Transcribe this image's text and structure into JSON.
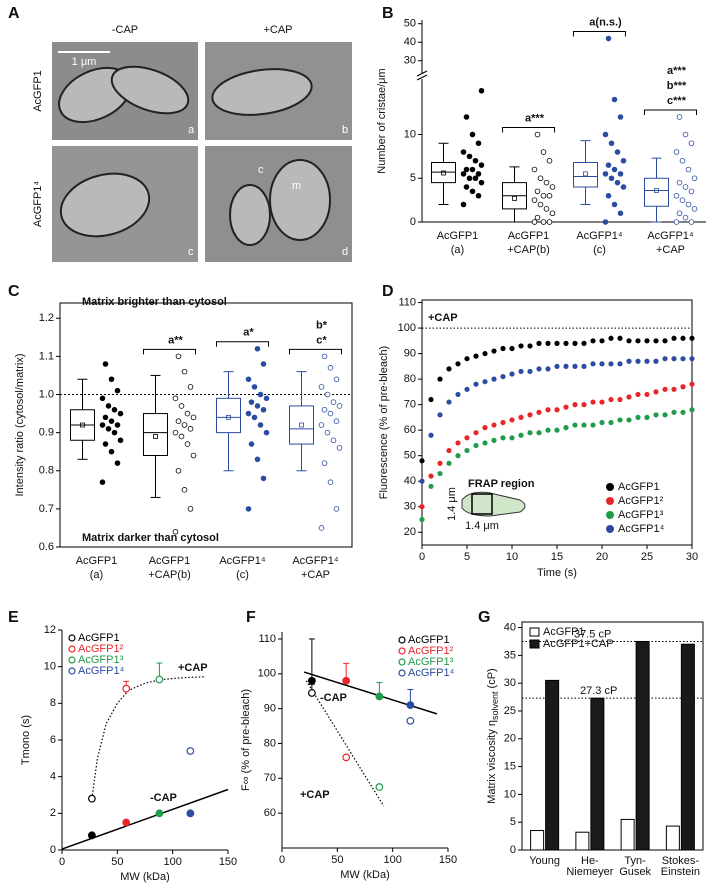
{
  "panel_a": {
    "panel": "A",
    "columns": [
      "-CAP",
      "+CAP"
    ],
    "rows": [
      "AcGFP1",
      "AcGFP1⁴"
    ],
    "scale_bar": "1 μm",
    "image_letters": [
      "a",
      "b",
      "c",
      "d"
    ],
    "compartment_labels": [
      "c",
      "m"
    ]
  },
  "chart_data": [
    {
      "type": "box-swarm",
      "panel": "B",
      "ylabel": "Number of cristae/μm",
      "categories": [
        "AcGFP1",
        "AcGFP1",
        "AcGFP1⁴",
        "AcGFP1⁴"
      ],
      "category_sublabels": [
        "(a)",
        "+CAP(b)",
        "(c)",
        "+CAP"
      ],
      "ylim": [
        0,
        16
      ],
      "yticks": [
        0,
        5,
        10
      ],
      "ylim_upper": [
        25,
        52
      ],
      "yticks_upper": [
        30,
        40,
        50
      ],
      "boxes": [
        {
          "whisker_low": 2,
          "q1": 4.5,
          "median": 5.7,
          "q3": 6.8,
          "whisker_high": 9,
          "mean": 5.6
        },
        {
          "whisker_low": 0,
          "q1": 1.5,
          "median": 3,
          "q3": 4.5,
          "whisker_high": 6.3,
          "mean": 2.7
        },
        {
          "whisker_low": 2,
          "q1": 4,
          "median": 5.2,
          "q3": 6.8,
          "whisker_high": 9.3,
          "mean": 5.5
        },
        {
          "whisker_low": 0,
          "q1": 1.8,
          "median": 3.6,
          "q3": 5,
          "whisker_high": 7.3,
          "mean": 3.6
        }
      ],
      "points": [
        [
          2,
          3,
          3.5,
          4,
          4.5,
          5,
          5,
          5.5,
          5.5,
          6,
          6,
          6.5,
          7,
          7.5,
          8,
          9,
          10,
          12,
          15
        ],
        [
          0,
          0,
          0,
          0.5,
          1,
          1.5,
          2,
          2.5,
          3,
          3,
          3.5,
          4,
          4.5,
          5,
          6,
          7,
          8,
          10
        ],
        [
          0,
          1,
          2,
          3,
          4,
          4.5,
          5,
          5.5,
          5.5,
          6,
          6.5,
          7,
          8,
          9,
          10,
          12,
          14,
          42
        ],
        [
          0,
          0,
          0.5,
          1,
          1.5,
          2,
          2.5,
          3,
          3.5,
          4,
          4.5,
          5,
          6,
          7,
          8,
          9,
          10,
          12
        ]
      ],
      "colors": [
        "#000000",
        "#000000",
        "#2b4ca0",
        "#2b4ca0"
      ],
      "open": [
        false,
        true,
        false,
        true
      ],
      "annotations": [
        null,
        [
          "a***"
        ],
        [
          "a(n.s.)"
        ],
        [
          "a***",
          "b***",
          "c***"
        ]
      ]
    },
    {
      "type": "box-swarm",
      "panel": "C",
      "ylabel": "Intensity ratio (cytosol/matrix)",
      "categories": [
        "AcGFP1",
        "AcGFP1",
        "AcGFP1⁴",
        "AcGFP1⁴"
      ],
      "category_sublabels": [
        "(a)",
        "+CAP(b)",
        "(c)",
        "+CAP"
      ],
      "ylim": [
        0.6,
        1.24
      ],
      "yticks": [
        0.6,
        0.7,
        0.8,
        0.9,
        {
          "value": 1,
          "label": "1.0"
        },
        1.1,
        1.2
      ],
      "reference_line": 1,
      "top_note": "Matrix brighter than cytosol",
      "bottom_note": "Matrix darker than cytosol",
      "boxes": [
        {
          "whisker_low": 0.83,
          "q1": 0.88,
          "median": 0.92,
          "q3": 0.96,
          "whisker_high": 1.04,
          "mean": 0.92
        },
        {
          "whisker_low": 0.73,
          "q1": 0.84,
          "median": 0.9,
          "q3": 0.95,
          "whisker_high": 1.05,
          "mean": 0.89
        },
        {
          "whisker_low": 0.8,
          "q1": 0.9,
          "median": 0.94,
          "q3": 0.99,
          "whisker_high": 1.06,
          "mean": 0.94
        },
        {
          "whisker_low": 0.8,
          "q1": 0.87,
          "median": 0.91,
          "q3": 0.97,
          "whisker_high": 1.06,
          "mean": 0.92
        }
      ],
      "points": [
        [
          0.77,
          0.82,
          0.85,
          0.87,
          0.88,
          0.9,
          0.91,
          0.92,
          0.92,
          0.93,
          0.94,
          0.95,
          0.96,
          0.97,
          0.99,
          1.01,
          1.04,
          1.08
        ],
        [
          0.64,
          0.7,
          0.75,
          0.8,
          0.84,
          0.87,
          0.89,
          0.9,
          0.91,
          0.92,
          0.93,
          0.94,
          0.95,
          0.97,
          0.99,
          1.02,
          1.06,
          1.1
        ],
        [
          0.7,
          0.78,
          0.83,
          0.87,
          0.9,
          0.92,
          0.94,
          0.95,
          0.96,
          0.97,
          0.98,
          0.99,
          1.0,
          1.02,
          1.04,
          1.08,
          1.12
        ],
        [
          0.65,
          0.7,
          0.77,
          0.82,
          0.86,
          0.88,
          0.9,
          0.92,
          0.93,
          0.95,
          0.96,
          0.97,
          0.98,
          1.0,
          1.02,
          1.04,
          1.07,
          1.1
        ]
      ],
      "colors": [
        "#000000",
        "#000000",
        "#2b4ca0",
        "#2b4ca0"
      ],
      "open": [
        false,
        true,
        false,
        true
      ],
      "annotations": [
        null,
        [
          "a**"
        ],
        [
          "a*"
        ],
        [
          "b*",
          "c*"
        ]
      ]
    },
    {
      "type": "scatter-line",
      "panel": "D",
      "xlabel": "Time (s)",
      "ylabel": "Fluorescence (% of pre-bleach)",
      "x": [
        0,
        1,
        2,
        3,
        4,
        5,
        6,
        7,
        8,
        9,
        10,
        11,
        12,
        13,
        14,
        15,
        16,
        17,
        18,
        19,
        20,
        21,
        22,
        23,
        24,
        25,
        26,
        27,
        28,
        29,
        30
      ],
      "series": [
        {
          "name": "AcGFP1",
          "color": "#000000",
          "values": [
            48,
            72,
            80,
            84,
            86,
            88,
            89,
            90,
            91,
            92,
            92,
            93,
            93,
            94,
            94,
            94,
            94,
            94,
            94,
            95,
            95,
            96,
            96,
            95,
            95,
            95,
            95,
            95,
            96,
            96,
            96
          ]
        },
        {
          "name": "AcGFP1²",
          "color": "#e8262a",
          "values": [
            30,
            42,
            47,
            52,
            55,
            57,
            59,
            61,
            62,
            63,
            64,
            65,
            66,
            67,
            68,
            68,
            69,
            70,
            70,
            71,
            71,
            72,
            72,
            73,
            74,
            74,
            75,
            76,
            76,
            77,
            78
          ]
        },
        {
          "name": "AcGFP1³",
          "color": "#1f9b4a",
          "values": [
            25,
            38,
            43,
            47,
            50,
            52,
            54,
            55,
            56,
            57,
            57,
            58,
            59,
            59,
            60,
            60,
            61,
            62,
            62,
            62,
            63,
            63,
            64,
            64,
            65,
            65,
            66,
            66,
            67,
            67,
            68
          ]
        },
        {
          "name": "AcGFP1⁴",
          "color": "#2b4ca0",
          "values": [
            40,
            58,
            66,
            71,
            74,
            76,
            78,
            79,
            80,
            81,
            82,
            83,
            83,
            84,
            84,
            85,
            85,
            85,
            85,
            86,
            86,
            86,
            86,
            87,
            87,
            87,
            87,
            88,
            88,
            88,
            88
          ]
        }
      ],
      "xlim": [
        0,
        30
      ],
      "xticks": [
        0,
        5,
        10,
        15,
        20,
        25,
        30
      ],
      "ylim": [
        15,
        111
      ],
      "yticks": [
        20,
        30,
        40,
        50,
        60,
        70,
        80,
        90,
        100,
        110
      ],
      "reference_line": 100,
      "annotation": "+CAP",
      "legend": "lower right",
      "inset_labels": [
        "FRAP region",
        "1.4 μm",
        "1.4 μm"
      ]
    },
    {
      "type": "scatter-fit",
      "panel": "E",
      "xlabel": "MW (kDa)",
      "ylabel": "Tmono (s)",
      "x": [
        27,
        58,
        88,
        116
      ],
      "legend_names": [
        "AcGFP1",
        "AcGFP1²",
        "AcGFP1³",
        "AcGFP1⁴"
      ],
      "point_colors": [
        "#000000",
        "#e8262a",
        "#1f9b4a",
        "#2b4ca0"
      ],
      "legend": "upper left",
      "series": [
        {
          "name": "-CAP",
          "open": false,
          "values": [
            0.8,
            1.5,
            2.0,
            2.0
          ],
          "fit_style": "solid",
          "fit": {
            "x": [
              0,
              150
            ],
            "y": [
              0.05,
              3.3
            ]
          }
        },
        {
          "name": "+CAP",
          "open": true,
          "values": [
            2.8,
            8.8,
            9.3,
            5.4
          ],
          "errors": [
            null,
            0.4,
            0.9,
            null
          ],
          "fit_style": "dotted",
          "fit": {
            "x": [
              27,
              32,
              40,
              50,
              60,
              75,
              90,
              110,
              130
            ],
            "y": [
              2.8,
              5,
              6.9,
              8.0,
              8.7,
              9.1,
              9.3,
              9.4,
              9.45
            ]
          }
        }
      ],
      "xlim": [
        0,
        150
      ],
      "xticks": [
        0,
        50,
        100,
        150
      ],
      "ylim": [
        0,
        12
      ],
      "yticks": [
        0,
        2,
        4,
        6,
        8,
        10,
        12
      ]
    },
    {
      "type": "scatter-fit",
      "panel": "F",
      "xlabel": "MW (kDa)",
      "ylabel": "F∞ (% of pre-bleach)",
      "x": [
        27,
        58,
        88,
        116
      ],
      "legend_names": [
        "AcGFP1",
        "AcGFP1²",
        "AcGFP1³",
        "AcGFP1⁴"
      ],
      "point_colors": [
        "#000000",
        "#e8262a",
        "#1f9b4a",
        "#2b4ca0"
      ],
      "legend": "upper right",
      "series": [
        {
          "name": "-CAP",
          "open": false,
          "values": [
            98,
            98,
            93.5,
            91
          ],
          "errors": [
            12,
            5,
            4,
            4.5
          ],
          "fit_style": "solid",
          "fit": {
            "x": [
              20,
              140
            ],
            "y": [
              100.5,
              88.5
            ]
          }
        },
        {
          "name": "+CAP",
          "open": true,
          "values": [
            94.5,
            76,
            67.5,
            86.5
          ],
          "errors": [
            2.5,
            null,
            null,
            null
          ],
          "fit_style": "dotted",
          "fit": {
            "x": [
              22,
              92
            ],
            "y": [
              98,
              62
            ]
          }
        }
      ],
      "xlim": [
        0,
        150
      ],
      "xticks": [
        0,
        50,
        100,
        150
      ],
      "ylim": [
        50,
        112
      ],
      "yticks": [
        60,
        70,
        80,
        90,
        100,
        110
      ]
    },
    {
      "type": "bar",
      "panel": "G",
      "ylabel": "Matrix viscosity η",
      "ylabel_sub": "solvent",
      "ylabel_unit": "(cP)",
      "categories": [
        [
          "Young"
        ],
        [
          "He-",
          "Niemeyer"
        ],
        [
          "Tyn-",
          "Gusek"
        ],
        [
          "Stokes-",
          "Einstein"
        ]
      ],
      "series": [
        {
          "name": "AcGFP1",
          "color": "#ffffff",
          "values": [
            3.5,
            3.2,
            5.5,
            4.3
          ]
        },
        {
          "name": "AcGFP1+CAP",
          "color": "#1a1a1a",
          "values": [
            30.5,
            27.3,
            37.5,
            37
          ]
        }
      ],
      "ylim": [
        0,
        41
      ],
      "yticks": [
        0,
        5,
        10,
        15,
        20,
        25,
        30,
        35,
        40
      ],
      "legend": "upper left",
      "reference_lines": [
        {
          "value": 37.5,
          "label": "37.5 cP"
        },
        {
          "value": 27.3,
          "label": "27.3 cP"
        }
      ]
    }
  ]
}
